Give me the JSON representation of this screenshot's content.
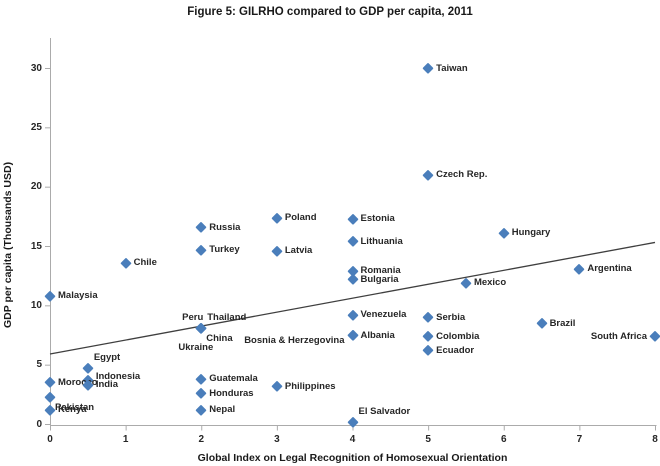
{
  "chart_data": {
    "type": "scatter",
    "title": "Figure 5: GILRHO compared to GDP per capita, 2011",
    "xlabel": "Global Index on Legal Recognition of Homosexual Orientation",
    "ylabel": "GDP per capita (Thousands USD)",
    "xlim": [
      0,
      8
    ],
    "ylim": [
      0,
      30
    ],
    "x_ticks": [
      "0",
      "1",
      "2",
      "3",
      "4",
      "5",
      "6",
      "7",
      "8"
    ],
    "y_ticks": [
      "0",
      "5",
      "10",
      "15",
      "20",
      "25",
      "30"
    ],
    "grid": false,
    "legend": "none",
    "colors": {
      "marker": "#4A7EBB",
      "trend": "#3F3F3F",
      "axis": "#ABABAB",
      "text": "#262626"
    },
    "trendline": {
      "x1": 0,
      "y1": 5.9,
      "x2": 8,
      "y2": 15.3
    },
    "points": [
      {
        "label": "Taiwan",
        "x": 5,
        "y": 30.0,
        "side": "r"
      },
      {
        "label": "Czech Rep.",
        "x": 5,
        "y": 21.0,
        "side": "r"
      },
      {
        "label": "Poland",
        "x": 3,
        "y": 17.4,
        "side": "r"
      },
      {
        "label": "Estonia",
        "x": 4,
        "y": 17.3,
        "side": "r"
      },
      {
        "label": "Russia",
        "x": 2,
        "y": 16.6,
        "side": "r"
      },
      {
        "label": "Hungary",
        "x": 6,
        "y": 16.1,
        "side": "r"
      },
      {
        "label": "Lithuania",
        "x": 4,
        "y": 15.4,
        "side": "r"
      },
      {
        "label": "Turkey",
        "x": 2,
        "y": 14.7,
        "side": "r"
      },
      {
        "label": "Latvia",
        "x": 3,
        "y": 14.6,
        "side": "r"
      },
      {
        "label": "Chile",
        "x": 1,
        "y": 13.6,
        "side": "r"
      },
      {
        "label": "Argentina",
        "x": 7,
        "y": 13.1,
        "side": "r"
      },
      {
        "label": "Romania",
        "x": 4,
        "y": 12.9,
        "side": "r"
      },
      {
        "label": "Bulgaria",
        "x": 4,
        "y": 12.2,
        "side": "r"
      },
      {
        "label": "Mexico",
        "x": 5.5,
        "y": 11.9,
        "side": "r"
      },
      {
        "label": "Malaysia",
        "x": 0,
        "y": 10.8,
        "side": "r"
      },
      {
        "label": "Venezuela",
        "x": 4,
        "y": 9.2,
        "side": "r"
      },
      {
        "label": "Serbia",
        "x": 5,
        "y": 9.0,
        "side": "r"
      },
      {
        "label": "Brazil",
        "x": 6.5,
        "y": 8.5,
        "side": "r"
      },
      {
        "label": "Peru",
        "x": 2,
        "y": 8.1,
        "side": "al"
      },
      {
        "label": "Thailand",
        "x": 2,
        "y": 8.1,
        "side": "ar"
      },
      {
        "label": "China",
        "x": 2,
        "y": 8.1,
        "side": "br"
      },
      {
        "label": "Ukraine",
        "x": 2,
        "y": 8.1,
        "side": "bl"
      },
      {
        "label": "Albania",
        "x": 4,
        "y": 7.5,
        "side": "r"
      },
      {
        "label": "Bosnia & Herzegovina",
        "x": 4,
        "y": 7.5,
        "side": "l",
        "dy": 5
      },
      {
        "label": "Colombia",
        "x": 5,
        "y": 7.4,
        "side": "r"
      },
      {
        "label": "South Africa",
        "x": 8,
        "y": 7.4,
        "side": "l"
      },
      {
        "label": "Ecuador",
        "x": 5,
        "y": 6.2,
        "side": "r"
      },
      {
        "label": "Egypt",
        "x": 0.5,
        "y": 4.7,
        "side": "ar"
      },
      {
        "label": "Guatemala",
        "x": 2,
        "y": 3.8,
        "side": "r"
      },
      {
        "label": "Indonesia",
        "x": 0.5,
        "y": 3.7,
        "side": "r",
        "dy": -4
      },
      {
        "label": "Morocco",
        "x": 0,
        "y": 3.5,
        "side": "r"
      },
      {
        "label": "India",
        "x": 0.5,
        "y": 3.3,
        "side": "r"
      },
      {
        "label": "Philippines",
        "x": 3,
        "y": 3.2,
        "side": "r"
      },
      {
        "label": "Honduras",
        "x": 2,
        "y": 2.6,
        "side": "r"
      },
      {
        "label": "Pakistan",
        "x": 0,
        "y": 2.3,
        "side": "br"
      },
      {
        "label": "Kenya",
        "x": 0,
        "y": 1.2,
        "side": "r"
      },
      {
        "label": "Nepal",
        "x": 2,
        "y": 1.2,
        "side": "r"
      },
      {
        "label": "El Salvador",
        "x": 4,
        "y": 0.15,
        "side": "ar"
      }
    ]
  }
}
